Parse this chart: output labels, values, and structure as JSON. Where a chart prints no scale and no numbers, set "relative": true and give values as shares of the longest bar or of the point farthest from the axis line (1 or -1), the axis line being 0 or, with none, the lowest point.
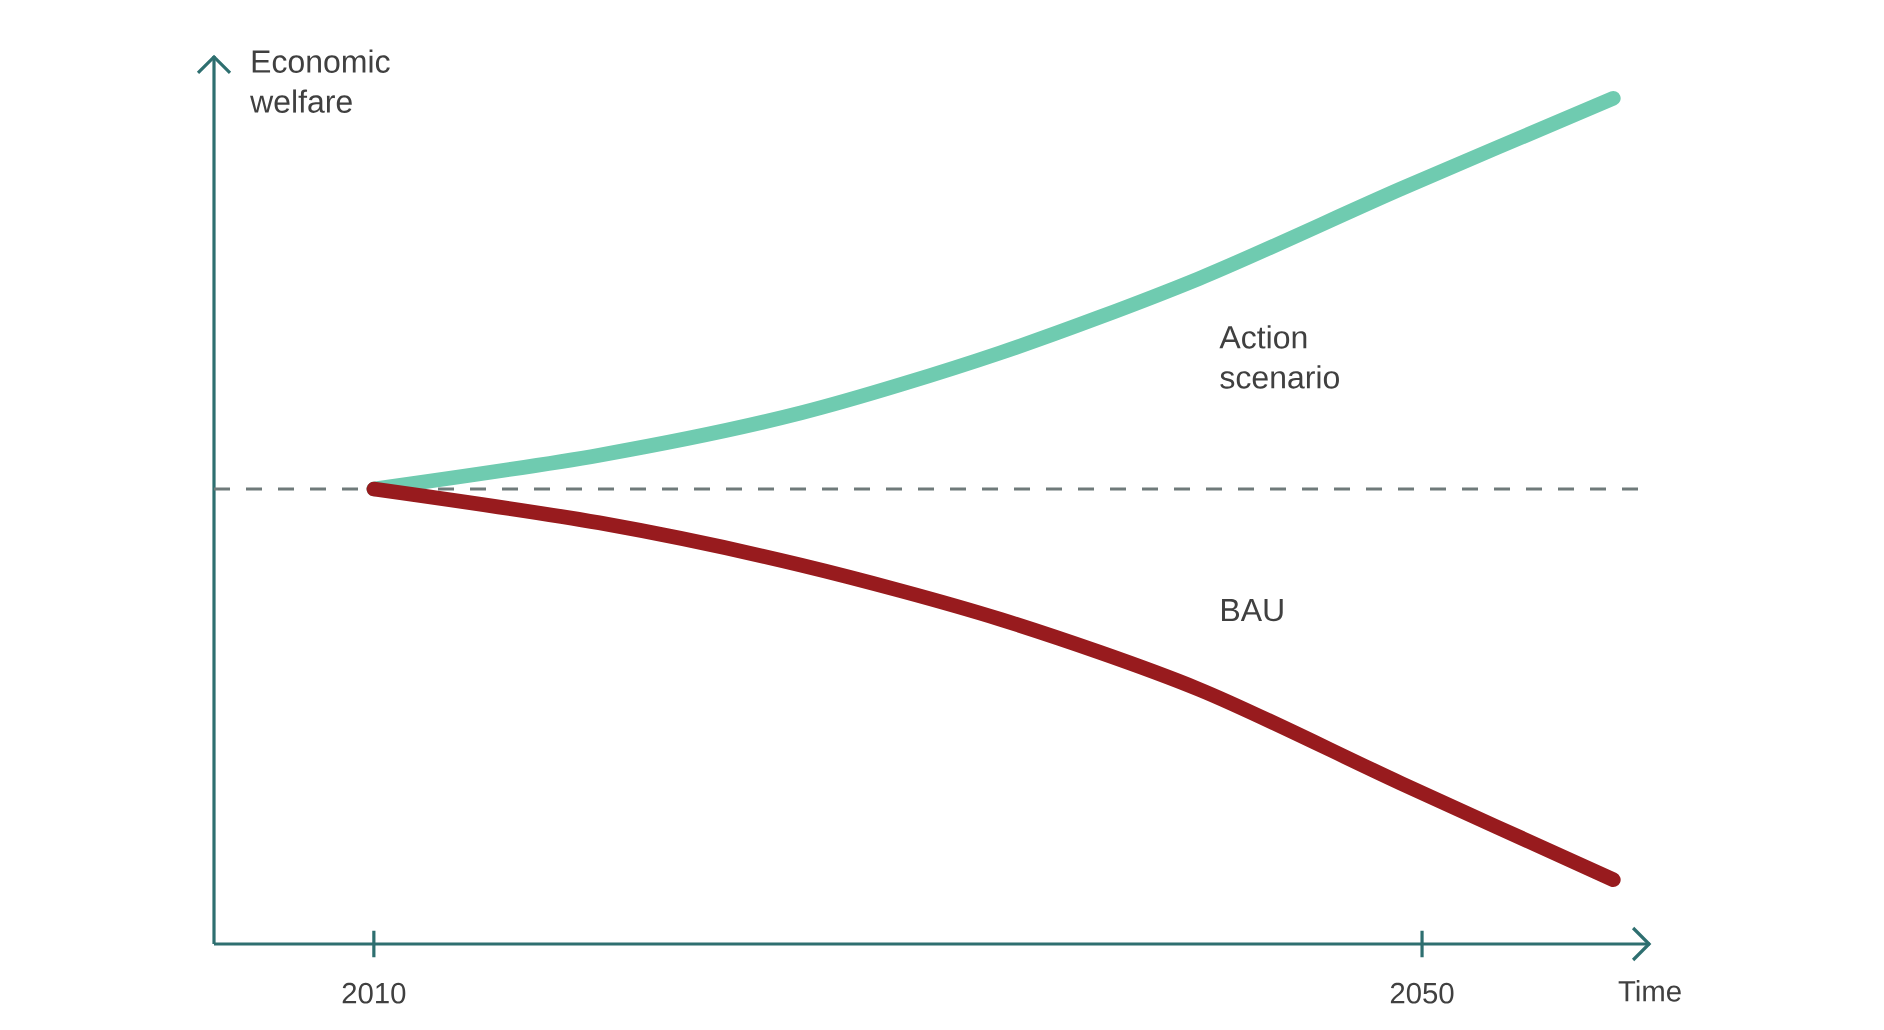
{
  "chart_data": {
    "type": "line",
    "relative": true,
    "xlabel": "Time",
    "ylabel": "Economic welfare",
    "xlim": [
      2003.9,
      2058.7
    ],
    "xticks": [
      2010,
      2050
    ],
    "ref_lines": [
      {
        "axis": "y",
        "value": 0.538,
        "color": "#6f7a7a",
        "line_style": "dashed"
      }
    ],
    "series": [
      {
        "name": "Action scenario",
        "color": "#6fcbb0",
        "x": [
          2010,
          2018.6,
          2026.3,
          2033.9,
          2041.5,
          2049.2,
          2057.3
        ],
        "values": [
          0.538,
          0.578,
          0.628,
          0.699,
          0.787,
          0.893,
          1
        ]
      },
      {
        "name": "BAU",
        "color": "#981b1e",
        "x": [
          2010,
          2018.6,
          2026.3,
          2033.9,
          2041.5,
          2049.2,
          2057.3
        ],
        "values": [
          0.538,
          0.498,
          0.448,
          0.384,
          0.301,
          0.19,
          0.076
        ]
      }
    ]
  }
}
